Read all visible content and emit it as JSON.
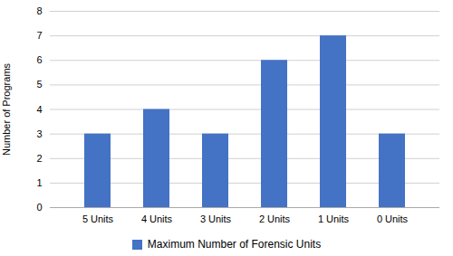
{
  "chart_data": {
    "type": "bar",
    "categories": [
      "5 Units",
      "4 Units",
      "3 Units",
      "2 Units",
      "1 Units",
      "0 Units"
    ],
    "series": [
      {
        "name": "Maximum Number of Forensic Units",
        "color": "#4472C4",
        "values": [
          3,
          4,
          3,
          6,
          7,
          3
        ]
      }
    ],
    "ylabel": "Number of Programs",
    "ylim": [
      0,
      8
    ],
    "yticks": [
      0,
      1,
      2,
      3,
      4,
      5,
      6,
      7,
      8
    ],
    "grid": true,
    "legend": "bottom"
  }
}
